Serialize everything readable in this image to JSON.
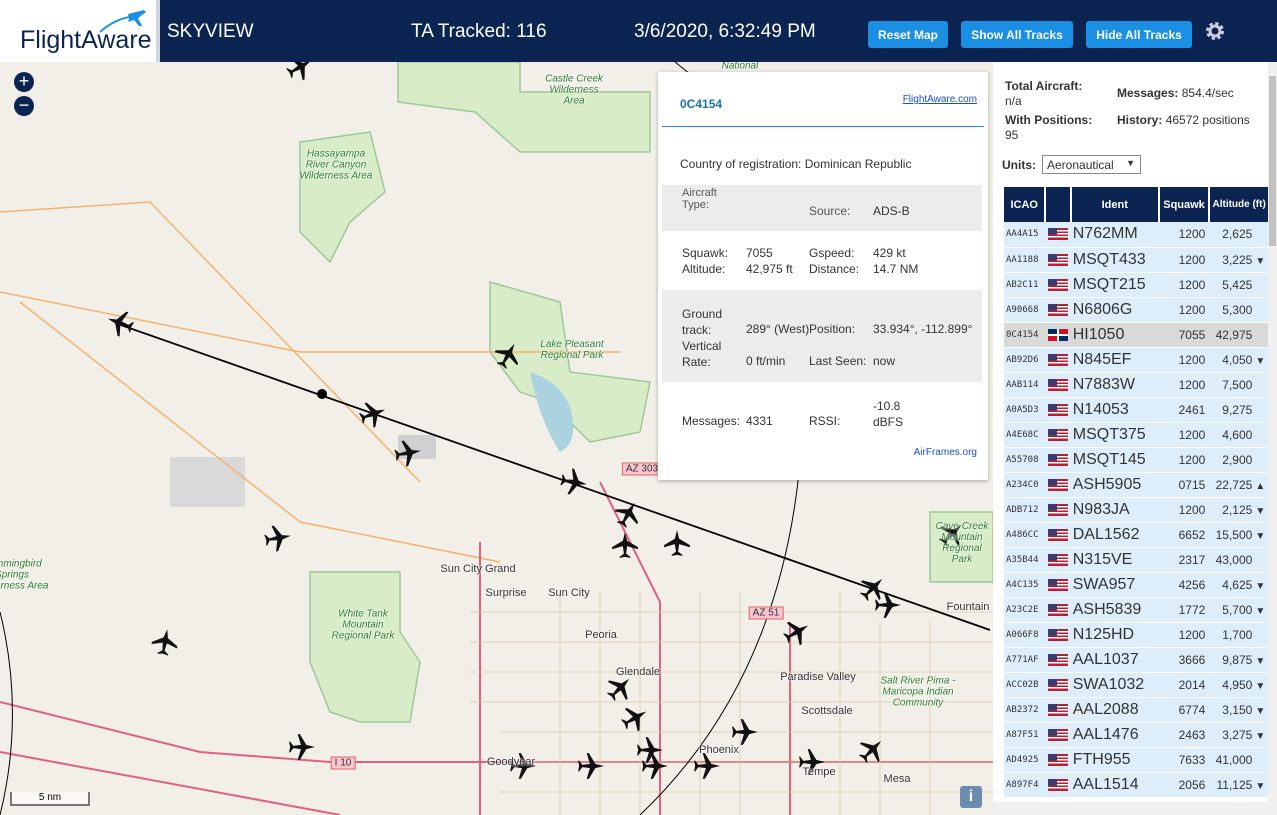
{
  "header": {
    "logo": "FlightAware",
    "title": "SKYVIEW",
    "tracked": "TA Tracked: 116",
    "datetime": "3/6/2020, 6:32:49 PM",
    "buttons": [
      "Reset Map",
      "Show All Tracks",
      "Hide All Tracks"
    ]
  },
  "map": {
    "labels": [
      "National",
      "Castle Creek Wilderness Area",
      "Hassayampa River Canyon Wilderness Area",
      "Lake Pleasant Regional Park",
      "AZ 303",
      "Sun City Grand",
      "Surprise",
      "Sun City",
      "Peoria",
      "Glendale",
      "White Tank Mountain Regional Park",
      "AZ 51",
      "Paradise Valley",
      "Scottsdale",
      "Salt River Pima - Maricopa Indian Community",
      "Phoenix",
      "Tempe",
      "Mesa",
      "Goodyear",
      "I 10",
      "Fountain",
      "Cave Creek Mountain Regional Park",
      "Hummingbird Springs Wilderness Area"
    ],
    "scale": "5 nm"
  },
  "popup": {
    "icao": "0C4154",
    "link": "FlightAware.com",
    "country_label": "Country of registration:",
    "country": "Dominican Republic",
    "type_label": "Aircraft Type:",
    "source_label": "Source:",
    "source": "ADS-B",
    "squawk_label": "Squawk:",
    "squawk": "7055",
    "gspeed_label": "Gspeed:",
    "gspeed": "429 kt",
    "altitude_label": "Altitude:",
    "altitude": "42,975 ft",
    "distance_label": "Distance:",
    "distance": "14.7 NM",
    "track_label": "Ground track:",
    "track": "289° (West)",
    "position_label": "Position:",
    "position": "33.934°, -112.899°",
    "vrate_label": "Vertical Rate:",
    "vrate": "0 ft/min",
    "seen_label": "Last Seen:",
    "seen": "now",
    "messages_label": "Messages:",
    "messages": "4331",
    "rssi_label": "RSSI:",
    "rssi": "-10.8 dBFS",
    "airframes": "AirFrames.org"
  },
  "stats": {
    "total_label": "Total Aircraft:",
    "total": "n/a",
    "messages_label": "Messages:",
    "messages": "854.4/sec",
    "positions_label": "With Positions:",
    "positions": "95",
    "history_label": "History:",
    "history": "46572 positions",
    "units_label": "Units:",
    "units": "Aeronautical"
  },
  "table": {
    "headers": [
      "ICAO",
      "Ident",
      "Squawk",
      "Altitude (ft)"
    ],
    "rows": [
      [
        "AA4A15",
        "N762MM",
        "1200",
        "2,625"
      ],
      [
        "AA1188",
        "MSQT433",
        "1200",
        "3,225",
        "▼"
      ],
      [
        "AB2C11",
        "MSQT215",
        "1200",
        "5,425"
      ],
      [
        "A90668",
        "N6806G",
        "1200",
        "5,300"
      ],
      [
        "0C4154",
        "HI1050",
        "7055",
        "42,975"
      ],
      [
        "AB92D6",
        "N845EF",
        "1200",
        "4,050",
        "▼"
      ],
      [
        "AAB114",
        "N7883W",
        "1200",
        "7,500"
      ],
      [
        "A0A5D3",
        "N14053",
        "2461",
        "9,275"
      ],
      [
        "A4E68C",
        "MSQT375",
        "1200",
        "4,600"
      ],
      [
        "A55708",
        "MSQT145",
        "1200",
        "2,900"
      ],
      [
        "A234C0",
        "ASH5905",
        "0715",
        "22,725",
        "▲"
      ],
      [
        "ADB712",
        "N983JA",
        "1200",
        "2,125",
        "▼"
      ],
      [
        "A486CC",
        "DAL1562",
        "6652",
        "15,500",
        "▼"
      ],
      [
        "A35B44",
        "N315VE",
        "2317",
        "43,000"
      ],
      [
        "A4C135",
        "SWA957",
        "4256",
        "4,625",
        "▼"
      ],
      [
        "A23C2E",
        "ASH5839",
        "1772",
        "5,700",
        "▼"
      ],
      [
        "A066F8",
        "N125HD",
        "1200",
        "1,700"
      ],
      [
        "A771AF",
        "AAL1037",
        "3666",
        "9,875",
        "▼"
      ],
      [
        "ACC02B",
        "SWA1032",
        "2014",
        "4,950",
        "▼"
      ],
      [
        "AB2372",
        "AAL2088",
        "6774",
        "3,150",
        "▼"
      ],
      [
        "A87F51",
        "AAL1476",
        "2463",
        "3,275",
        "▼"
      ],
      [
        "AD4925",
        "FTH955",
        "7633",
        "41,000"
      ],
      [
        "A897F4",
        "AAL1514",
        "2056",
        "11,125",
        "▼"
      ]
    ]
  }
}
